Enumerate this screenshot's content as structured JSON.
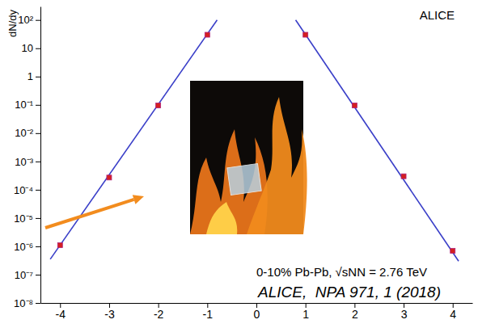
{
  "chart_data": {
    "type": "scatter",
    "ylabel": "dN/dy",
    "annotations": [
      "ALICE",
      "0-10% Pb-Pb, √sNN = 2.76 TeV",
      "ALICE,  NPA 971, 1 (2018)"
    ],
    "log": "y",
    "grid": false,
    "xlim": [
      -4.4,
      4.4
    ],
    "xticks": [
      -4,
      -3,
      -2,
      -1,
      0,
      1,
      2,
      3,
      4
    ],
    "ylim": [
      1e-08,
      300
    ],
    "yticks": [
      {
        "value": 1e-08,
        "label": "10⁻⁸"
      },
      {
        "value": 1e-07,
        "label": "10⁻⁷"
      },
      {
        "value": 1e-06,
        "label": "10⁻⁶"
      },
      {
        "value": 1e-05,
        "label": "10⁻⁵"
      },
      {
        "value": 0.0001,
        "label": "10⁻⁴"
      },
      {
        "value": 0.001,
        "label": "10⁻³"
      },
      {
        "value": 0.01,
        "label": "10⁻²"
      },
      {
        "value": 0.1,
        "label": "10⁻¹"
      },
      1,
      10,
      {
        "value": 100,
        "label": "10²"
      }
    ],
    "series": [
      {
        "type": "scatter",
        "color": "#d42020",
        "marker": "square",
        "x": [
          -4,
          -3,
          -2,
          -1,
          1,
          2,
          3,
          4
        ],
        "values": [
          1.1e-06,
          0.00027,
          0.095,
          30,
          30,
          0.095,
          0.0003,
          7e-07
        ]
      },
      {
        "type": "line",
        "color": "#3a3fc8",
        "line_style": "solid",
        "x": [
          -4.2,
          -0.8
        ],
        "values": [
          3.5e-07,
          100
        ]
      },
      {
        "type": "line",
        "color": "#3a3fc8",
        "line_style": "solid",
        "x": [
          0.8,
          4.12
        ],
        "values": [
          100,
          3e-07
        ]
      }
    ]
  }
}
